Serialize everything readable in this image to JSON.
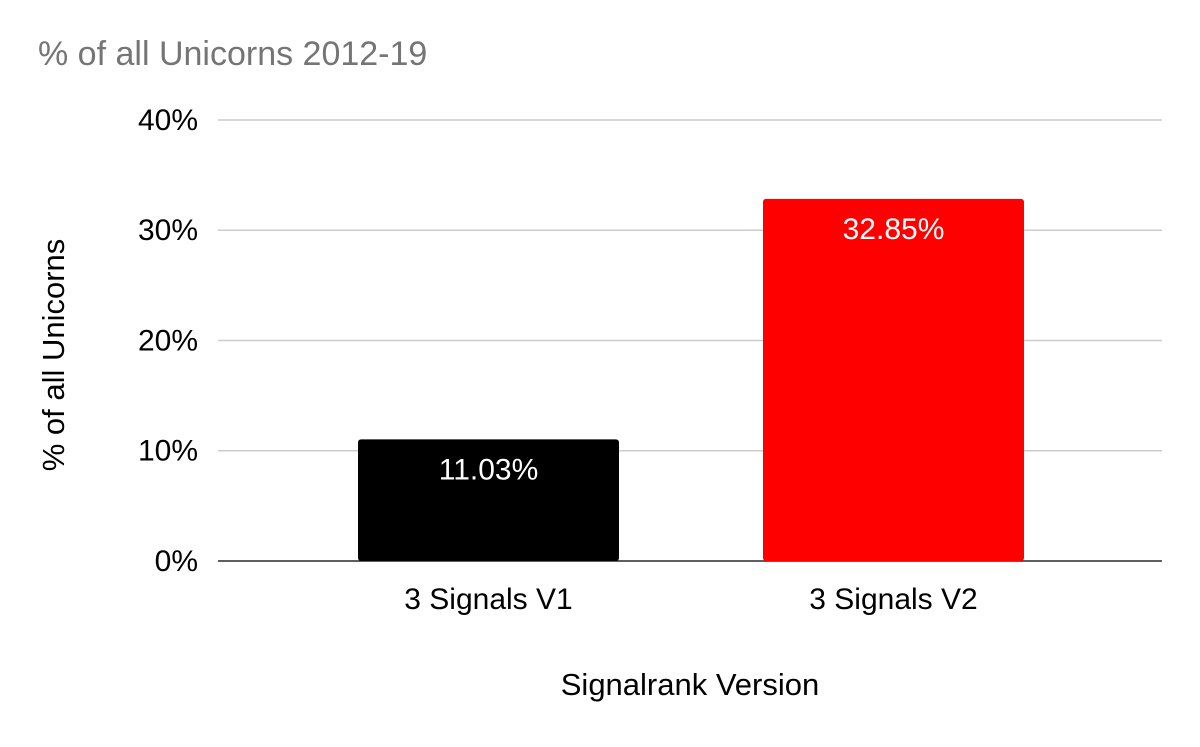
{
  "chart_data": {
    "type": "bar",
    "title": "% of all Unicorns 2012-19",
    "x_label": "Signalrank Version",
    "y_label": "% of all Unicorns",
    "categories": [
      "3 Signals V1",
      "3 Signals V2"
    ],
    "values": [
      11.03,
      32.85
    ],
    "value_labels": [
      "11.03%",
      "32.85%"
    ],
    "colors": [
      "#000000",
      "#ff0000"
    ],
    "ylim": [
      0,
      40
    ],
    "yticks": [
      {
        "value": 0,
        "label": "0%"
      },
      {
        "value": 10,
        "label": "10%"
      },
      {
        "value": 20,
        "label": "20%"
      },
      {
        "value": 30,
        "label": "30%"
      },
      {
        "value": 40,
        "label": "40%"
      }
    ],
    "grid": true
  }
}
